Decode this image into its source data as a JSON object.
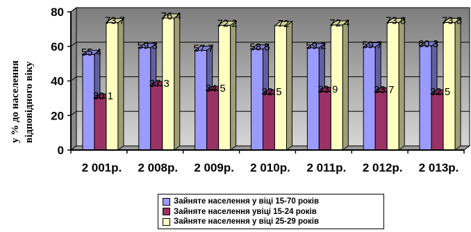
{
  "chart_data": {
    "type": "bar",
    "ylabel_lines": [
      "у % до населення",
      "відповідного віку"
    ],
    "categories": [
      "2 001р.",
      "2 008р.",
      "2 009р.",
      "2 010р.",
      "2 011р.",
      "2 012р.",
      "2 013р."
    ],
    "ylim": [
      0,
      80
    ],
    "yticks": [
      "0",
      "20",
      "40",
      "60",
      "80"
    ],
    "grid": true,
    "legend_position": "bottom",
    "series": [
      {
        "name": "Зайняте населення у віці 15-70 років",
        "color": "#9b9bff",
        "values": [
          55.4,
          59.3,
          57.7,
          58.5,
          59.2,
          59.7,
          60.3
        ],
        "labels": [
          "55.4",
          "59.3",
          "57.7",
          "58.5",
          "59.2",
          "59.7",
          "60.3"
        ]
      },
      {
        "name": "Зайняте населення увіці 15-24 років",
        "color": "#993366",
        "values": [
          30.1,
          37.3,
          34.5,
          32.5,
          33.9,
          33.7,
          32.5
        ],
        "labels": [
          "30.1",
          "37.3",
          "34.5",
          "32.5",
          "33.9",
          "33.7",
          "32.5"
        ]
      },
      {
        "name": "Зайняте населення у віці 25-29 років",
        "color": "#ffffc0",
        "values": [
          73.7,
          76.4,
          72.2,
          72,
          72.4,
          73.8,
          73.8
        ],
        "labels": [
          "73.7",
          "76.4",
          "72.2",
          "72",
          "72.4",
          "73.8",
          "73.8"
        ]
      }
    ]
  }
}
